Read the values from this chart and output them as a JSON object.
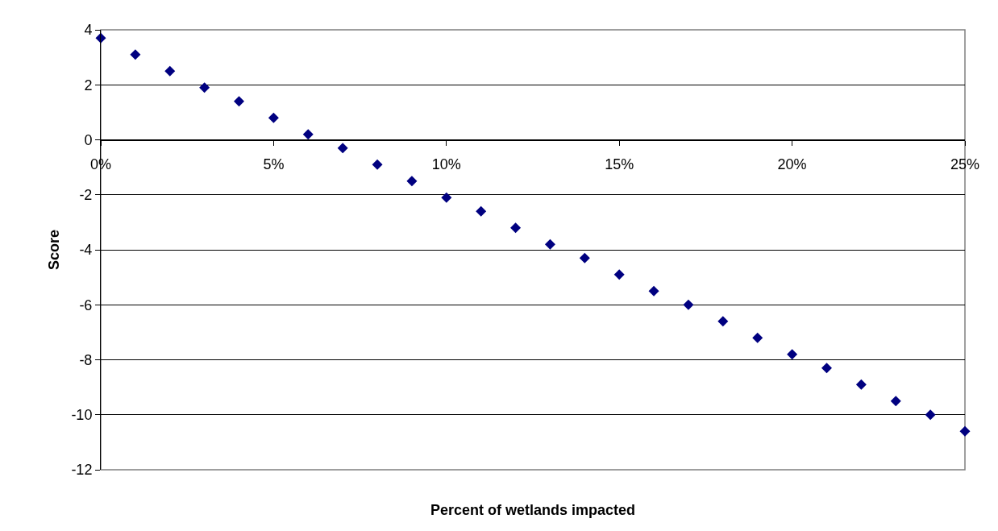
{
  "chart_data": {
    "type": "scatter",
    "xlabel": "Percent of wetlands impacted",
    "ylabel": "Score",
    "x": [
      0,
      0.01,
      0.02,
      0.03,
      0.04,
      0.05,
      0.06,
      0.07,
      0.08,
      0.09,
      0.1,
      0.11,
      0.12,
      0.13,
      0.14,
      0.15,
      0.16,
      0.17,
      0.18,
      0.19,
      0.2,
      0.21,
      0.22,
      0.23,
      0.24,
      0.25
    ],
    "series": [
      {
        "color": "#000080",
        "values": [
          3.7,
          3.1,
          2.5,
          1.9,
          1.4,
          0.8,
          0.2,
          -0.3,
          -0.9,
          -1.5,
          -2.1,
          -2.6,
          -3.2,
          -3.8,
          -4.3,
          -4.9,
          -5.5,
          -6.0,
          -6.6,
          -7.2,
          -7.8,
          -8.3,
          -8.9,
          -9.5,
          -10.0,
          -10.6
        ]
      }
    ],
    "xlim": [
      0,
      0.25
    ],
    "xticks": [
      {
        "value": 0,
        "label": "0%"
      },
      {
        "value": 0.05,
        "label": "5%"
      },
      {
        "value": 0.1,
        "label": "10%"
      },
      {
        "value": 0.15,
        "label": "15%"
      },
      {
        "value": 0.2,
        "label": "20%"
      },
      {
        "value": 0.25,
        "label": "25%"
      }
    ],
    "ylim": [
      -12,
      4
    ],
    "yticks": [
      -12,
      -10,
      -8,
      -6,
      -4,
      -2,
      0,
      2,
      4
    ],
    "grid": "y",
    "marker": "diamond"
  }
}
